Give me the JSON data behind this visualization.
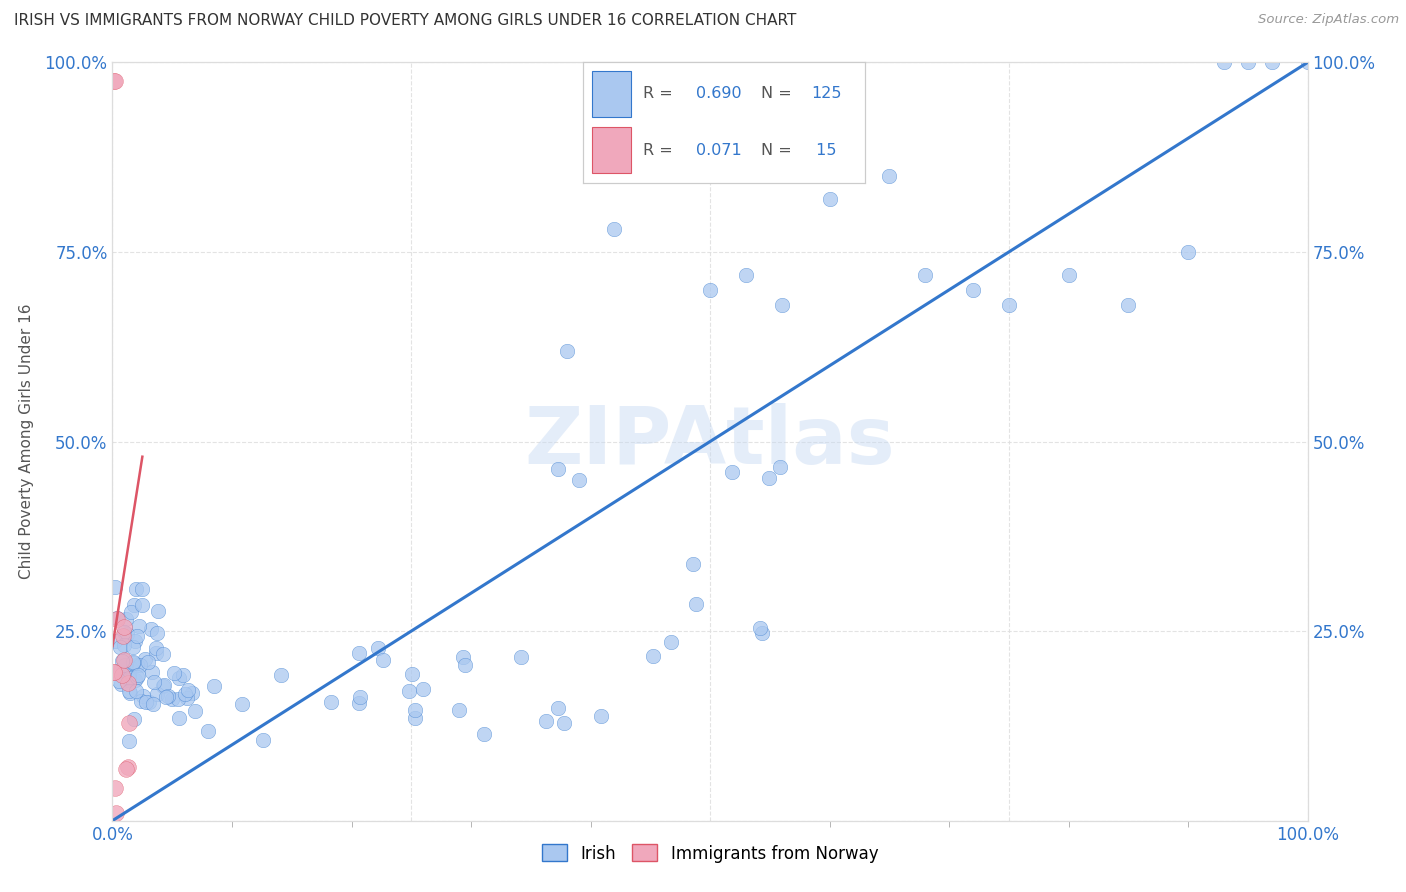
{
  "title": "IRISH VS IMMIGRANTS FROM NORWAY CHILD POVERTY AMONG GIRLS UNDER 16 CORRELATION CHART",
  "source": "Source: ZipAtlas.com",
  "ylabel": "Child Poverty Among Girls Under 16",
  "watermark": "ZIPAtlas",
  "irish_R": 0.69,
  "irish_N": 125,
  "norway_R": 0.071,
  "norway_N": 15,
  "irish_color": "#aac8f0",
  "norway_color": "#f0a8bc",
  "irish_line_color": "#3377cc",
  "norway_line_color": "#dd5566",
  "axis_label_color": "#3377cc",
  "title_color": "#333333",
  "background_color": "#ffffff",
  "grid_color": "#e0e0e0",
  "xlim": [
    0.0,
    1.0
  ],
  "ylim": [
    0.0,
    1.0
  ],
  "xticks": [
    0.0,
    0.25,
    0.5,
    0.75,
    1.0
  ],
  "yticks": [
    0.0,
    0.25,
    0.5,
    0.75,
    1.0
  ],
  "xticklabels": [
    "0.0%",
    "",
    "",
    "",
    "100.0%"
  ],
  "yticklabels": [
    "",
    "25.0%",
    "50.0%",
    "75.0%",
    "100.0%"
  ]
}
